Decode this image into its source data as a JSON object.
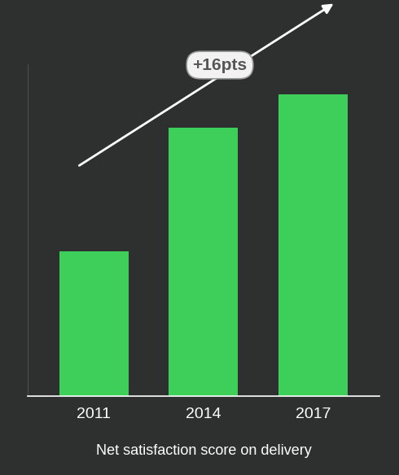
{
  "chart_data": {
    "type": "bar",
    "categories": [
      "2011",
      "2014",
      "2017"
    ],
    "values": [
      48,
      89,
      100
    ],
    "color": "#3ecf5a",
    "ylim": [
      0,
      110
    ],
    "x_label": "Net satisfaction score on delivery",
    "annotation": "+16pts",
    "tick_labels": "x",
    "grid": false
  }
}
